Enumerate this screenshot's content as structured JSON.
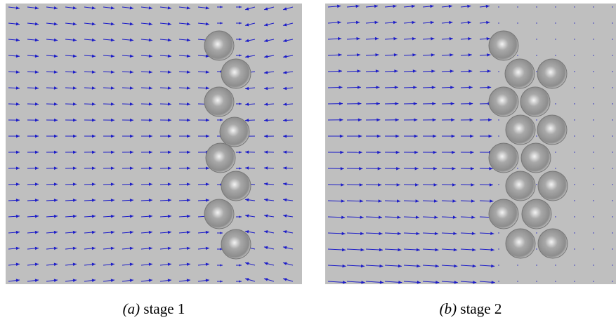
{
  "panels": [
    {
      "label": "(a)",
      "caption": "stage 1"
    },
    {
      "label": "(b)",
      "caption": "stage 2"
    }
  ]
}
